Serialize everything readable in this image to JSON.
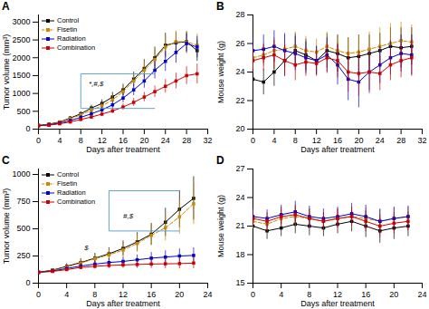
{
  "chart_data": [
    {
      "type": "line",
      "title": "A",
      "xlabel": "Days after treatment",
      "ylabel": "Tumor volume (mm³)",
      "x": [
        0,
        2,
        4,
        6,
        8,
        10,
        12,
        14,
        16,
        18,
        20,
        22,
        24,
        26,
        28,
        30
      ],
      "xlim": [
        0,
        32
      ],
      "xticks": [
        0,
        4,
        8,
        12,
        16,
        20,
        24,
        28,
        32
      ],
      "ylim": [
        0,
        3200
      ],
      "yticks": [
        0,
        500,
        1000,
        1500,
        2000,
        2500,
        3000
      ],
      "grid": false,
      "legend": "upper left",
      "series": [
        {
          "name": "Control",
          "color": "#000000",
          "line_style": "solid",
          "marker": "square",
          "values": [
            100,
            140,
            200,
            310,
            430,
            590,
            720,
            900,
            1100,
            1400,
            1700,
            2000,
            2350,
            2420,
            2450,
            2200
          ],
          "errors": [
            10,
            20,
            30,
            45,
            60,
            80,
            100,
            130,
            160,
            200,
            250,
            300,
            340,
            300,
            280,
            300
          ]
        },
        {
          "name": "Fisetin",
          "color": "#cc8800",
          "line_style": "dashed",
          "marker": "square",
          "values": [
            100,
            130,
            190,
            290,
            400,
            530,
            650,
            820,
            1050,
            1350,
            1650,
            1950,
            2300,
            2450,
            2450,
            2350
          ],
          "errors": [
            10,
            20,
            30,
            45,
            60,
            75,
            90,
            120,
            150,
            190,
            240,
            280,
            320,
            300,
            280,
            320
          ]
        },
        {
          "name": "Radiation",
          "color": "#0000cc",
          "line_style": "solid",
          "marker": "square",
          "values": [
            100,
            120,
            170,
            240,
            330,
            430,
            540,
            680,
            870,
            1100,
            1350,
            1650,
            1900,
            2150,
            2400,
            2300
          ],
          "errors": [
            10,
            15,
            25,
            35,
            50,
            65,
            80,
            100,
            130,
            160,
            200,
            240,
            280,
            300,
            280,
            300
          ]
        },
        {
          "name": "Combination",
          "color": "#cc0000",
          "line_style": "solid",
          "marker": "square",
          "values": [
            100,
            110,
            150,
            200,
            270,
            340,
            420,
            510,
            620,
            750,
            900,
            1050,
            1200,
            1350,
            1500,
            1550
          ],
          "errors": [
            10,
            15,
            20,
            28,
            38,
            50,
            60,
            75,
            90,
            110,
            130,
            160,
            190,
            220,
            250,
            280
          ]
        }
      ],
      "annotations": [
        {
          "text": "*,#,$",
          "x": 9.5,
          "y": 1200
        }
      ],
      "brackets": [
        {
          "x1": 8,
          "x2": 22,
          "y_bottom": 580,
          "y_top": 1550,
          "color": "#5599cc"
        }
      ]
    },
    {
      "type": "line",
      "title": "B",
      "xlabel": "Days after treatment",
      "ylabel": "Mouse weight (g)",
      "x": [
        0,
        2,
        4,
        6,
        8,
        10,
        12,
        14,
        16,
        18,
        20,
        22,
        24,
        26,
        28,
        30
      ],
      "xlim": [
        0,
        32
      ],
      "xticks": [
        0,
        4,
        8,
        12,
        16,
        20,
        24,
        28,
        32
      ],
      "ylim": [
        20,
        28
      ],
      "yticks": [
        20,
        22,
        24,
        26,
        28
      ],
      "grid": false,
      "series": [
        {
          "name": "Control",
          "color": "#000000",
          "line_style": "solid",
          "marker": "square",
          "values": [
            23.5,
            23.3,
            24.0,
            24.8,
            25.5,
            25.2,
            24.8,
            25.5,
            25.3,
            25.0,
            25.1,
            25.3,
            25.5,
            25.8,
            25.7,
            25.8
          ],
          "errors": [
            0.8,
            0.9,
            1.0,
            1.1,
            1.2,
            1.1,
            1.0,
            1.2,
            1.3,
            1.4,
            1.5,
            1.3,
            1.2,
            1.3,
            1.4,
            1.3
          ]
        },
        {
          "name": "Fisetin",
          "color": "#cc8800",
          "line_style": "dashed",
          "marker": "square",
          "values": [
            25.0,
            25.2,
            25.5,
            25.6,
            25.8,
            25.5,
            25.4,
            25.8,
            25.5,
            25.3,
            25.4,
            25.6,
            25.8,
            26.0,
            26.2,
            26.1
          ],
          "errors": [
            0.8,
            0.8,
            0.9,
            1.0,
            1.0,
            1.0,
            0.9,
            1.0,
            1.0,
            1.1,
            1.2,
            1.2,
            1.3,
            1.4,
            1.3,
            1.2
          ]
        },
        {
          "name": "Radiation",
          "color": "#0000cc",
          "line_style": "solid",
          "marker": "square",
          "values": [
            25.5,
            25.6,
            25.8,
            25.5,
            25.3,
            25.0,
            24.8,
            25.2,
            24.5,
            23.5,
            23.3,
            24.0,
            24.5,
            25.0,
            25.3,
            25.2
          ],
          "errors": [
            0.9,
            1.0,
            1.1,
            1.2,
            1.2,
            1.1,
            1.0,
            1.2,
            1.4,
            1.5,
            1.8,
            1.5,
            1.3,
            1.2,
            1.3,
            1.4
          ]
        },
        {
          "name": "Combination",
          "color": "#cc0000",
          "line_style": "solid",
          "marker": "square",
          "values": [
            24.8,
            25.0,
            25.2,
            24.8,
            24.5,
            24.7,
            24.6,
            25.0,
            24.8,
            24.0,
            23.9,
            24.0,
            23.9,
            24.5,
            24.8,
            25.0
          ],
          "errors": [
            0.8,
            0.9,
            1.0,
            1.1,
            1.1,
            1.0,
            0.9,
            1.1,
            1.2,
            1.4,
            1.6,
            1.3,
            1.2,
            1.1,
            1.2,
            1.3
          ]
        }
      ]
    },
    {
      "type": "line",
      "title": "C",
      "xlabel": "Days after treatment",
      "ylabel": "Tumor volume (mm³)",
      "x": [
        0,
        2,
        4,
        6,
        8,
        10,
        12,
        14,
        16,
        18,
        20,
        22
      ],
      "xlim": [
        0,
        24
      ],
      "xticks": [
        0,
        4,
        8,
        12,
        16,
        20,
        24
      ],
      "ylim": [
        0,
        1050
      ],
      "yticks": [
        0,
        250,
        500,
        750,
        1000
      ],
      "grid": false,
      "legend": "upper left",
      "series": [
        {
          "name": "Control",
          "color": "#000000",
          "line_style": "solid",
          "marker": "square",
          "values": [
            100,
            120,
            155,
            190,
            230,
            270,
            320,
            380,
            450,
            560,
            680,
            780
          ],
          "errors": [
            10,
            15,
            25,
            35,
            45,
            55,
            70,
            85,
            100,
            130,
            170,
            200
          ]
        },
        {
          "name": "Fisetin",
          "color": "#cc8800",
          "line_style": "dashed",
          "marker": "square",
          "values": [
            100,
            118,
            148,
            185,
            225,
            260,
            305,
            365,
            440,
            510,
            610,
            730
          ],
          "errors": [
            10,
            14,
            22,
            32,
            42,
            52,
            66,
            80,
            95,
            120,
            160,
            190
          ]
        },
        {
          "name": "Radiation",
          "color": "#0000cc",
          "line_style": "solid",
          "marker": "square",
          "values": [
            100,
            112,
            135,
            158,
            175,
            190,
            200,
            215,
            230,
            240,
            250,
            255
          ],
          "errors": [
            10,
            12,
            18,
            24,
            30,
            35,
            40,
            45,
            52,
            58,
            65,
            70
          ]
        },
        {
          "name": "Combination",
          "color": "#cc0000",
          "line_style": "solid",
          "marker": "square",
          "values": [
            100,
            108,
            125,
            145,
            155,
            163,
            168,
            172,
            176,
            178,
            180,
            185
          ],
          "errors": [
            10,
            11,
            15,
            20,
            25,
            28,
            32,
            36,
            40,
            44,
            48,
            52
          ]
        }
      ],
      "annotations": [
        {
          "text": "#,$",
          "x": 12,
          "y": 600
        },
        {
          "text": "$",
          "x": 6.5,
          "y": 305
        }
      ],
      "brackets": [
        {
          "x1": 10,
          "x2": 20,
          "y_bottom": 480,
          "y_top": 850,
          "color": "#5599cc"
        }
      ]
    },
    {
      "type": "line",
      "title": "D",
      "xlabel": "Days after treatment",
      "ylabel": "Mouse weight (g)",
      "x": [
        0,
        2,
        4,
        6,
        8,
        10,
        12,
        14,
        16,
        18,
        20,
        22
      ],
      "xlim": [
        0,
        24
      ],
      "xticks": [
        0,
        4,
        8,
        12,
        16,
        20,
        24
      ],
      "ylim": [
        15,
        27
      ],
      "yticks": [
        15,
        18,
        21,
        24,
        27
      ],
      "grid": false,
      "series": [
        {
          "name": "Control",
          "color": "#000000",
          "line_style": "solid",
          "marker": "square",
          "values": [
            21.0,
            20.5,
            20.8,
            21.2,
            21.0,
            20.8,
            21.2,
            21.5,
            21.0,
            20.5,
            20.8,
            21.0
          ],
          "errors": [
            0.8,
            0.9,
            0.9,
            1.0,
            1.0,
            0.9,
            1.0,
            1.1,
            1.2,
            1.3,
            1.2,
            1.1
          ]
        },
        {
          "name": "Fisetin",
          "color": "#cc8800",
          "line_style": "dashed",
          "marker": "square",
          "values": [
            21.5,
            21.2,
            21.8,
            22.0,
            21.8,
            21.5,
            21.8,
            22.0,
            21.8,
            21.5,
            21.8,
            22.0
          ],
          "errors": [
            0.8,
            0.8,
            0.9,
            1.0,
            1.0,
            0.9,
            1.0,
            1.0,
            1.1,
            1.2,
            1.1,
            1.0
          ]
        },
        {
          "name": "Radiation",
          "color": "#0000cc",
          "line_style": "solid",
          "marker": "square",
          "values": [
            22.0,
            21.8,
            22.2,
            22.5,
            22.0,
            21.8,
            22.0,
            22.3,
            22.0,
            21.5,
            21.8,
            22.0
          ],
          "errors": [
            0.9,
            0.9,
            1.0,
            1.1,
            1.1,
            1.0,
            1.0,
            1.1,
            1.2,
            1.3,
            1.2,
            1.1
          ]
        },
        {
          "name": "Combination",
          "color": "#cc0000",
          "line_style": "solid",
          "marker": "square",
          "values": [
            21.8,
            21.5,
            22.0,
            22.2,
            21.8,
            21.5,
            21.8,
            22.0,
            21.5,
            21.0,
            21.3,
            21.5
          ],
          "errors": [
            0.9,
            0.9,
            1.0,
            1.0,
            1.0,
            0.9,
            1.0,
            1.0,
            1.1,
            1.2,
            1.1,
            1.0
          ]
        }
      ]
    }
  ]
}
